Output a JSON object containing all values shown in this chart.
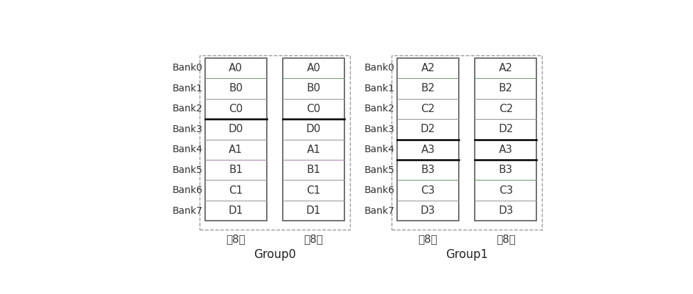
{
  "groups": [
    {
      "label": "Group0",
      "columns": [
        {
          "subtitle": "体8位",
          "cells": [
            "A0",
            "B0",
            "C0",
            "D0",
            "A1",
            "B1",
            "C1",
            "D1"
          ]
        },
        {
          "subtitle": "高8位",
          "cells": [
            "A0",
            "B0",
            "C0",
            "D0",
            "A1",
            "B1",
            "C1",
            "D1"
          ]
        }
      ],
      "bank_labels": [
        "Bank0",
        "Bank1",
        "Bank2",
        "Bank3",
        "Bank4",
        "Bank5",
        "Bank6",
        "Bank7"
      ]
    },
    {
      "label": "Group1",
      "columns": [
        {
          "subtitle": "体8位",
          "cells": [
            "A2",
            "B2",
            "C2",
            "D2",
            "A3",
            "B3",
            "C3",
            "D3"
          ]
        },
        {
          "subtitle": "高8位",
          "cells": [
            "A2",
            "B2",
            "C2",
            "D2",
            "A3",
            "B3",
            "C3",
            "D3"
          ]
        }
      ],
      "bank_labels": [
        "Bank0",
        "Bank1",
        "Bank2",
        "Bank3",
        "Bank4",
        "Bank5",
        "Bank6",
        "Bank7"
      ]
    }
  ],
  "background_color": "#ffffff",
  "cell_bg": "#ffffff",
  "group_label_fontsize": 12,
  "cell_fontsize": 11,
  "bank_fontsize": 10,
  "subtitle_fontsize": 11
}
